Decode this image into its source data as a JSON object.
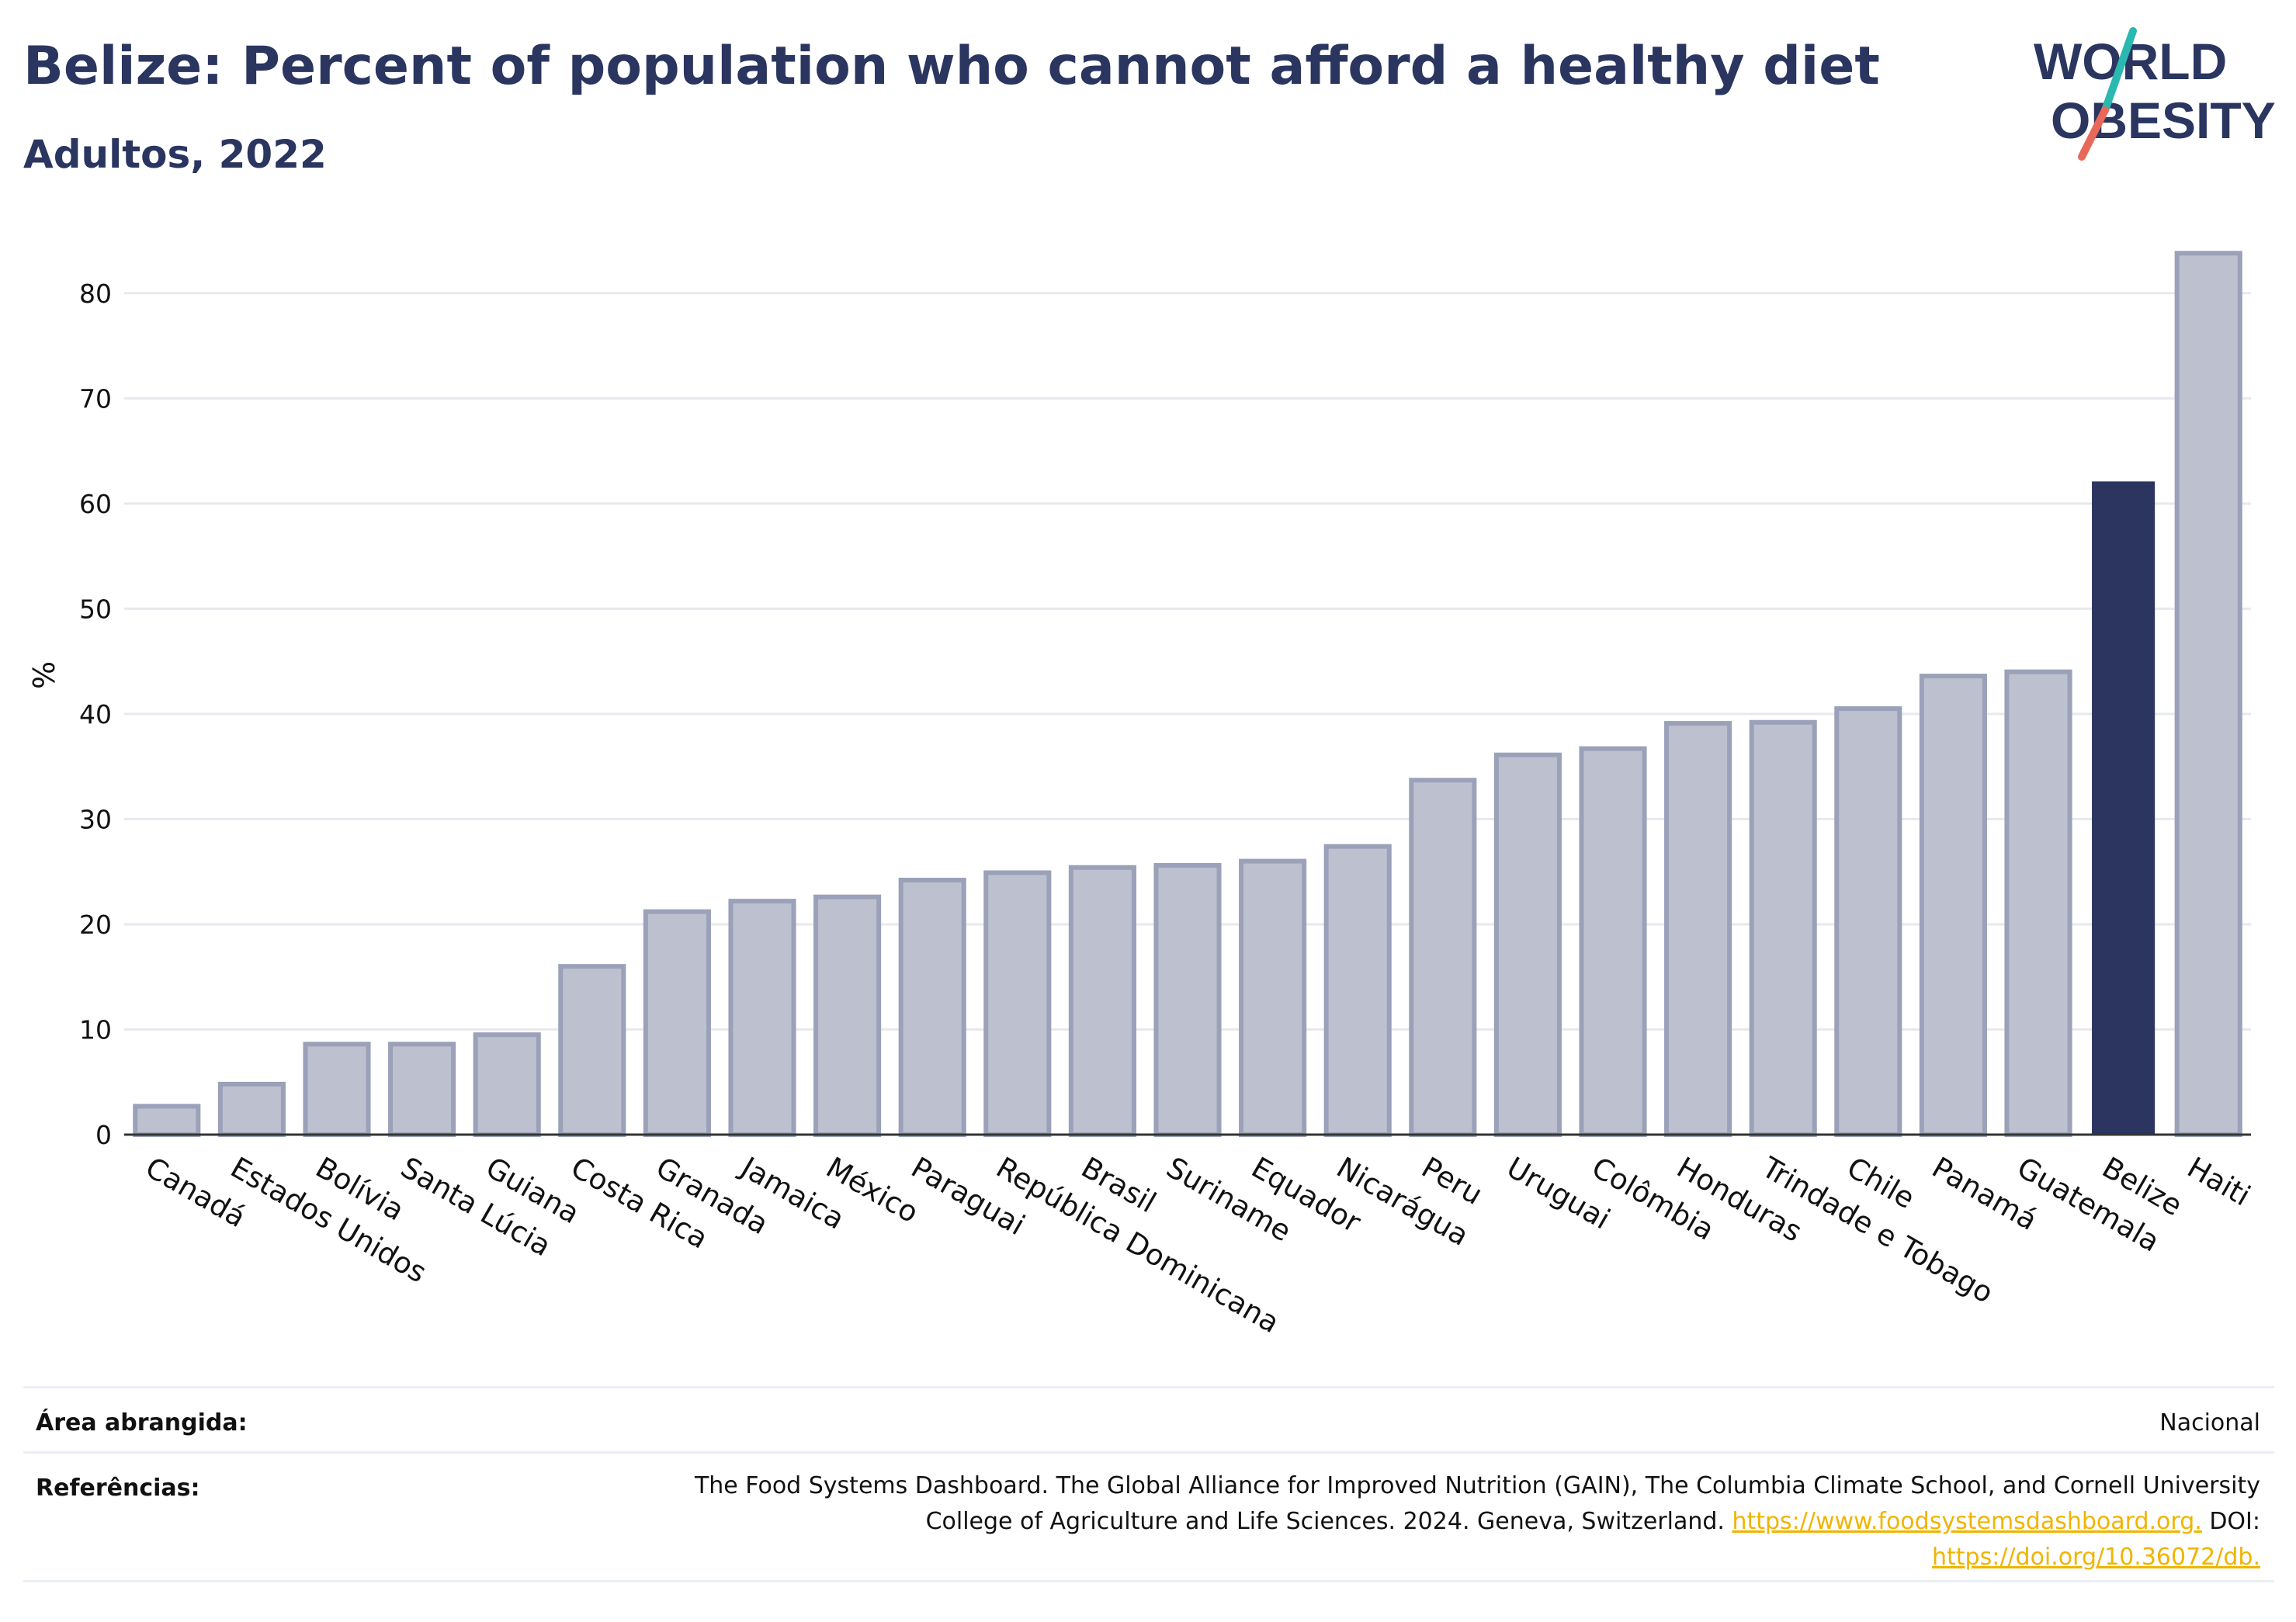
{
  "header": {
    "title": "Belize: Percent of population who cannot afford a healthy diet",
    "subtitle": "Adultos, 2022",
    "logo_text_line1": "WORLD",
    "logo_text_line2": "OBESITY"
  },
  "colors": {
    "title": "#2a3560",
    "bar_default": "#bdc1cf",
    "bar_default_stroke": "#9aa1b8",
    "bar_highlight": "#2b3560",
    "grid": "#e8e9ee",
    "link": "#f0b400",
    "logo_teal": "#2ab8b0",
    "logo_coral": "#e8685a"
  },
  "chart_data": {
    "type": "bar",
    "xlabel": "",
    "ylabel": "%",
    "ylim": [
      0,
      85
    ],
    "yticks": [
      0,
      10,
      20,
      30,
      40,
      50,
      60,
      70,
      80
    ],
    "grid": true,
    "highlight": "Belize",
    "categories": [
      "Canadá",
      "Estados Unidos",
      "Bolívia",
      "Santa Lúcia",
      "Guiana",
      "Costa Rica",
      "Granada",
      "Jamaica",
      "México",
      "Paraguai",
      "República Dominicana",
      "Brasil",
      "Suriname",
      "Equador",
      "Nicarágua",
      "Peru",
      "Uruguai",
      "Colômbia",
      "Honduras",
      "Trindade e Tobago",
      "Chile",
      "Panamá",
      "Guatemala",
      "Belize",
      "Haiti"
    ],
    "values": [
      2.7,
      4.8,
      8.6,
      8.6,
      9.5,
      16.0,
      21.2,
      22.2,
      22.6,
      24.2,
      24.9,
      25.4,
      25.6,
      26.0,
      27.4,
      33.7,
      36.1,
      36.7,
      39.1,
      39.2,
      40.5,
      43.6,
      44.0,
      62.1,
      83.8
    ]
  },
  "footer": {
    "area_label": "Área abrangida:",
    "area_value": "Nacional",
    "references_label": "Referências:",
    "ref_line1": "The Food Systems Dashboard. The Global Alliance for Improved Nutrition (GAIN), The Columbia Climate School, and Cornell University",
    "ref_line2_text": "College of Agriculture and Life Sciences. 2024. Geneva, Switzerland. ",
    "ref_link1": "https://www.foodsystemsdashboard.org.",
    "ref_line2_suffix": " DOI:",
    "ref_link2": "https://doi.org/10.36072/db."
  }
}
